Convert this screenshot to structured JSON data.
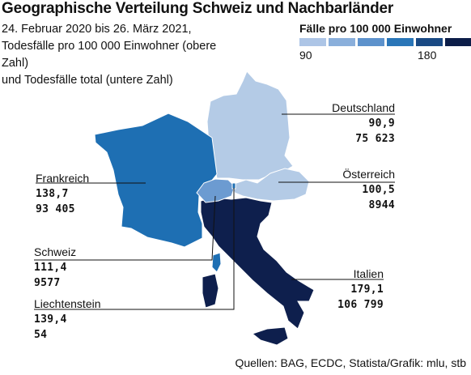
{
  "title": "Geographische Verteilung Schweiz und Nachbarländer",
  "subtitle": [
    "24. Februar 2020 bis 26. März 2021,",
    "Todesfälle pro 100 000 Einwohner (obere Zahl)",
    "und Todesfälle total (untere Zahl)"
  ],
  "legend": {
    "title": "Fälle pro 100 000 Einwohner",
    "min": "90",
    "max": "180",
    "colors": [
      "#adc5e6",
      "#8aafdb",
      "#5d92cc",
      "#2a76b8",
      "#1a4a84",
      "#0c1d48"
    ]
  },
  "countries": {
    "deutschland": {
      "name": "Deutschland",
      "per100k": "90,9",
      "total": "75 623",
      "color": "#b4cbe6"
    },
    "oesterreich": {
      "name": "Österreich",
      "per100k": "100,5",
      "total": "8944",
      "color": "#b4cbe6"
    },
    "frankreich": {
      "name": "Frankreich",
      "per100k": "138,7",
      "total": "93 405",
      "color": "#1e6fb3"
    },
    "schweiz": {
      "name": "Schweiz",
      "per100k": "111,4",
      "total": "9577",
      "color": "#6c9bd1"
    },
    "liechtenstein": {
      "name": "Liechtenstein",
      "per100k": "139,4",
      "total": "54",
      "color": "#1e6fb3"
    },
    "italien": {
      "name": "Italien",
      "per100k": "179,1",
      "total": "106 799",
      "color": "#0e1f4d"
    }
  },
  "source": "Quellen: BAG, ECDC, Statista/Grafik: mlu, stb"
}
